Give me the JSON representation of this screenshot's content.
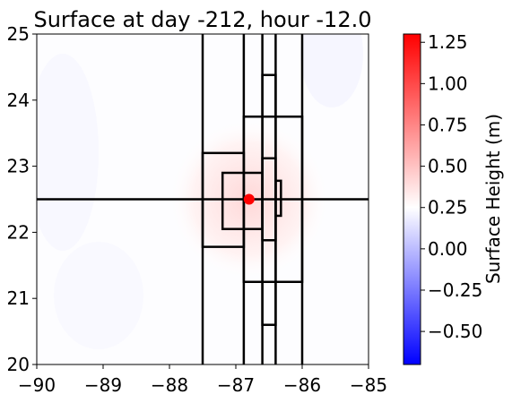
{
  "chart_data": {
    "type": "heatmap",
    "title": "Surface at day -212, hour -12.0",
    "xlabel": "",
    "ylabel": "",
    "xlim": [
      -90,
      -85
    ],
    "ylim": [
      20,
      25
    ],
    "x_ticks": [
      "−90",
      "−89",
      "−88",
      "−87",
      "−86",
      "−85"
    ],
    "x_tick_values": [
      -90,
      -89,
      -88,
      -87,
      -86,
      -85
    ],
    "y_ticks": [
      "20",
      "21",
      "22",
      "23",
      "24",
      "25"
    ],
    "y_tick_values": [
      20,
      21,
      22,
      23,
      24,
      25
    ],
    "colorbar": {
      "label": "Surface Height (m)",
      "vmin": -0.7,
      "vmax": 1.3,
      "colormap": "bwr",
      "ticks": [
        "−0.50",
        "−0.25",
        "0.00",
        "0.25",
        "0.50",
        "0.75",
        "1.00",
        "1.25"
      ],
      "tick_values": [
        -0.5,
        -0.25,
        0.0,
        0.25,
        0.5,
        0.75,
        1.0,
        1.25
      ]
    },
    "field": {
      "background_value": 0.25,
      "peak_center": [
        -86.8,
        22.5
      ],
      "peak_value": 1.2,
      "peak_radius_deg": 0.85
    },
    "marker": {
      "x": -86.8,
      "y": 22.5,
      "color": "#ff0000"
    },
    "grid_lines": {
      "horizontal": [
        22.5
      ],
      "vertical": [
        -87.5,
        -86.88,
        -86.6,
        -86.4,
        -86.0
      ]
    },
    "rectangles": [
      {
        "x0": -87.5,
        "x1": -86.88,
        "y0": 21.78,
        "y1": 23.2
      },
      {
        "x0": -87.2,
        "x1": -86.6,
        "y0": 22.05,
        "y1": 22.9
      },
      {
        "x0": -86.4,
        "x1": -86.32,
        "y0": 22.25,
        "y1": 22.78
      },
      {
        "x0": -86.6,
        "x1": -86.4,
        "y0": 21.88,
        "y1": 23.12
      },
      {
        "x0": -86.6,
        "x1": -86.4,
        "y0": 20.6,
        "y1": 24.38
      },
      {
        "x0": -86.88,
        "x1": -86.0,
        "y0": 21.25,
        "y1": 23.75
      }
    ]
  }
}
